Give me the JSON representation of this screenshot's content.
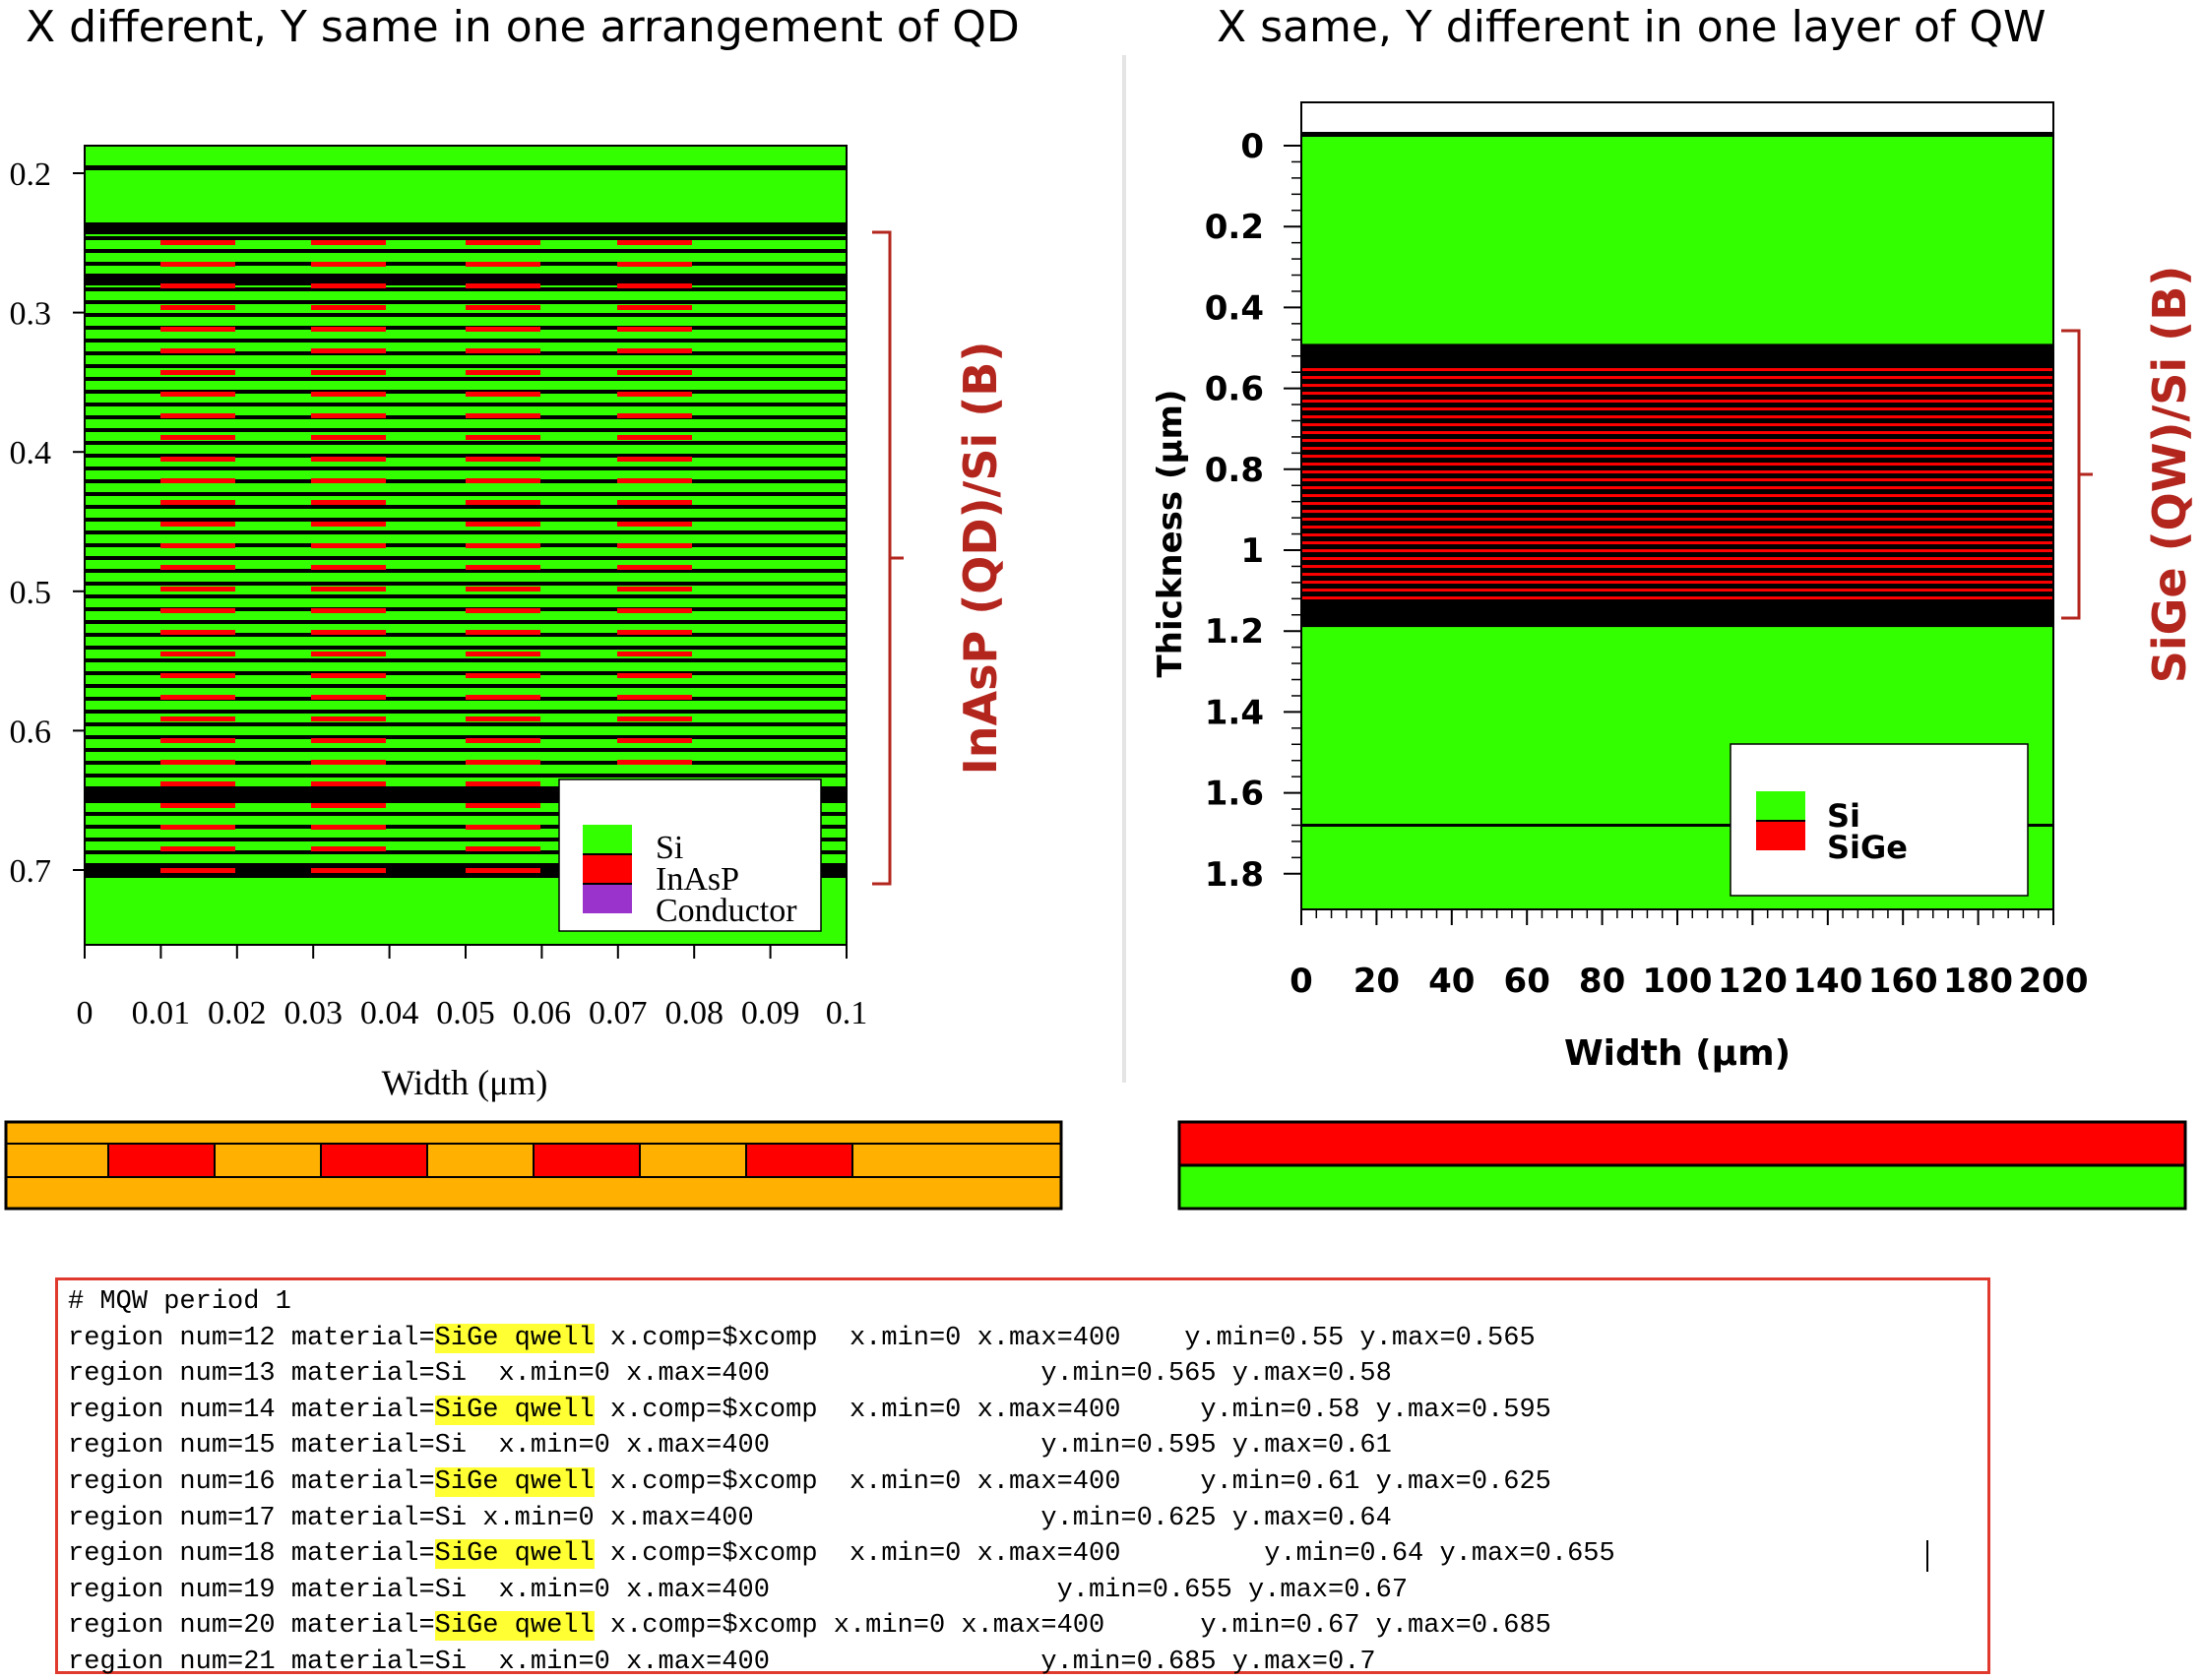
{
  "titles": {
    "left": "X different, Y same in one arrangement of QD",
    "right": "X same, Y different in one layer of QW"
  },
  "colors": {
    "si": "#33ff00",
    "red": "#ff0000",
    "black": "#000000",
    "conductor": "#9933cc",
    "orange": "#ffb000",
    "annotation": "#b3261e",
    "code_border": "#e03a2f",
    "highlight": "#ffff33"
  },
  "left_plot": {
    "xlabel": "Width (μm)",
    "x_ticks": [
      "0",
      "0.01",
      "0.02",
      "0.03",
      "0.04",
      "0.05",
      "0.06",
      "0.07",
      "0.08",
      "0.09",
      "0.1"
    ],
    "y_ticks": [
      "0.2",
      "0.3",
      "0.4",
      "0.5",
      "0.6",
      "0.7"
    ],
    "legend": [
      "Si",
      "InAsP",
      "Conductor"
    ],
    "bracket_label": "InAsP (QD)/Si (B)"
  },
  "right_plot": {
    "xlabel": "Width (μm)",
    "ylabel": "Thickness (μm)",
    "x_ticks": [
      "0",
      "20",
      "40",
      "60",
      "80",
      "100",
      "120",
      "140",
      "160",
      "180",
      "200"
    ],
    "y_ticks": [
      "0",
      "0.2",
      "0.4",
      "0.6",
      "0.8",
      "1",
      "1.2",
      "1.4",
      "1.6",
      "1.8"
    ],
    "legend": [
      "Si",
      "SiGe"
    ],
    "bracket_label": "SiGe (QW)/Si (B)"
  },
  "code": {
    "lines": [
      {
        "pre": "# MQW period 1",
        "hl": "",
        "post": ""
      },
      {
        "pre": "region num=12 material=",
        "hl": "SiGe qwell",
        "post": " x.comp=$xcomp  x.min=0 x.max=400    y.min=0.55 y.max=0.565"
      },
      {
        "pre": "region num=13 material=Si  x.min=0 x.max=400                 y.min=0.565 y.max=0.58",
        "hl": "",
        "post": ""
      },
      {
        "pre": "region num=14 material=",
        "hl": "SiGe qwell",
        "post": " x.comp=$xcomp  x.min=0 x.max=400     y.min=0.58 y.max=0.595"
      },
      {
        "pre": "region num=15 material=Si  x.min=0 x.max=400                 y.min=0.595 y.max=0.61",
        "hl": "",
        "post": ""
      },
      {
        "pre": "region num=16 material=",
        "hl": "SiGe qwell",
        "post": " x.comp=$xcomp  x.min=0 x.max=400     y.min=0.61 y.max=0.625"
      },
      {
        "pre": "region num=17 material=Si x.min=0 x.max=400                  y.min=0.625 y.max=0.64",
        "hl": "",
        "post": ""
      },
      {
        "pre": "region num=18 material=",
        "hl": "SiGe qwell",
        "post": " x.comp=$xcomp  x.min=0 x.max=400         y.min=0.64 y.max=0.655"
      },
      {
        "pre": "region num=19 material=Si  x.min=0 x.max=400                  y.min=0.655 y.max=0.67",
        "hl": "",
        "post": ""
      },
      {
        "pre": "region num=20 material=",
        "hl": "SiGe qwell",
        "post": " x.comp=$xcomp x.min=0 x.max=400      y.min=0.67 y.max=0.685"
      },
      {
        "pre": "region num=21 material=Si  x.min=0 x.max=400                 y.min=0.685 y.max=0.7",
        "hl": "",
        "post": ""
      }
    ]
  }
}
